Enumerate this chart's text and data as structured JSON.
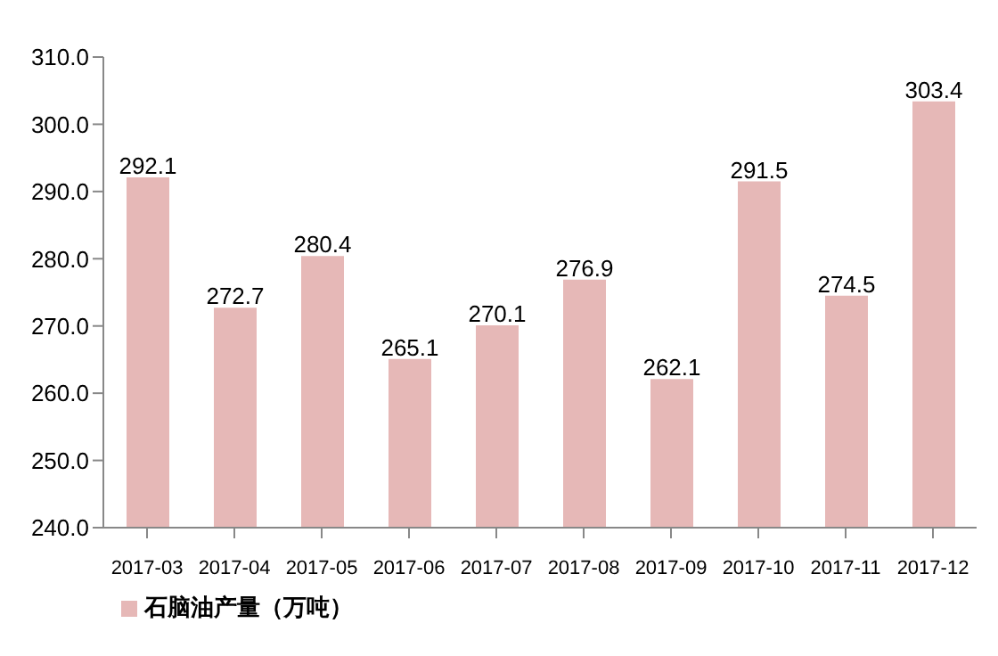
{
  "chart_data": {
    "type": "bar",
    "categories": [
      "2017-03",
      "2017-04",
      "2017-05",
      "2017-06",
      "2017-07",
      "2017-08",
      "2017-09",
      "2017-10",
      "2017-11",
      "2017-12"
    ],
    "series": [
      {
        "name": "石脑油产量（万吨）",
        "color": "#e6b8b7",
        "values": [
          292.1,
          272.7,
          280.4,
          265.1,
          270.1,
          276.9,
          262.1,
          291.5,
          274.5,
          303.4
        ]
      }
    ],
    "ylim": [
      240,
      310
    ],
    "yticks": [
      {
        "value": 240,
        "label": "240.0"
      },
      {
        "value": 250,
        "label": "250.0"
      },
      {
        "value": 260,
        "label": "260.0"
      },
      {
        "value": 270,
        "label": "270.0"
      },
      {
        "value": 280,
        "label": "280.0"
      },
      {
        "value": 290,
        "label": "290.0"
      },
      {
        "value": 300,
        "label": "300.0"
      },
      {
        "value": 310,
        "label": "310.0"
      }
    ],
    "grid": false,
    "legend": "bottom",
    "data_labels": true
  }
}
